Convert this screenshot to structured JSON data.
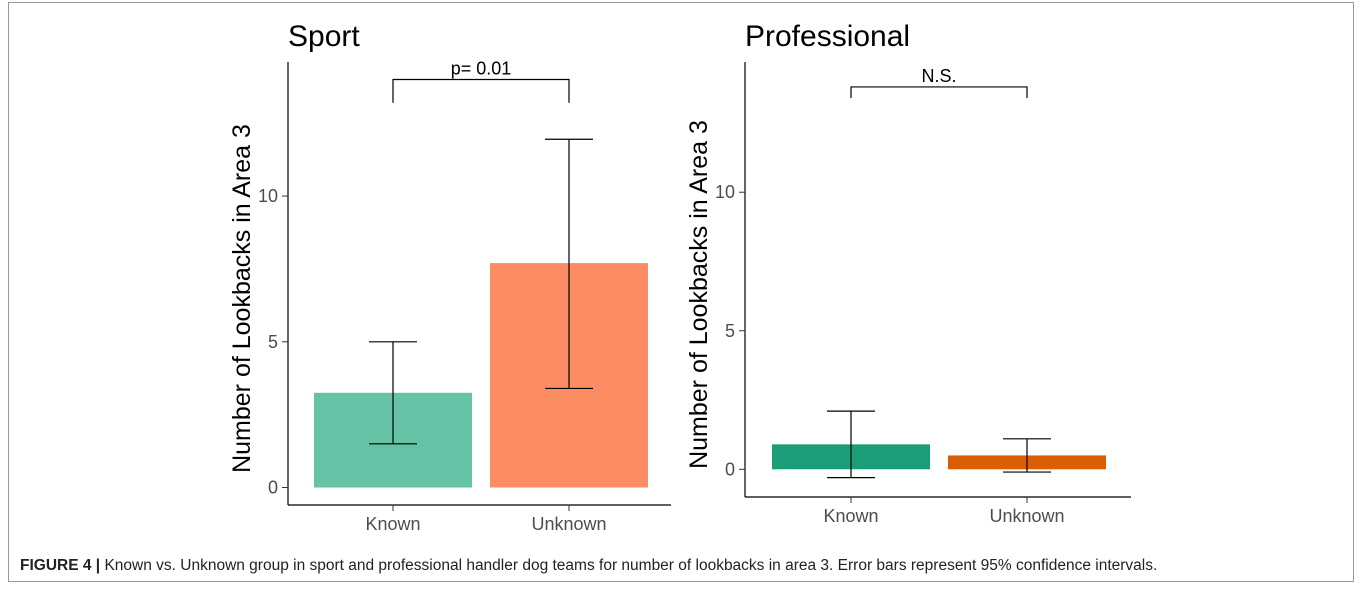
{
  "chart_data": [
    {
      "type": "bar",
      "title": "Sport",
      "ylabel": "Number of Lookbacks in Area 3",
      "xlabel": "",
      "categories": [
        "Known",
        "Unknown"
      ],
      "values": [
        3.25,
        7.7
      ],
      "ci_lower": [
        1.5,
        3.4
      ],
      "ci_upper": [
        5.0,
        11.95
      ],
      "colors": [
        "#66c2a5",
        "#fc8d62"
      ],
      "yticks": [
        0,
        5,
        10
      ],
      "ylim": [
        -0.6,
        14.6
      ],
      "annotation": "p= 0.01",
      "bracket_y": 14.0,
      "bracket_drop": 0.8,
      "grid": false,
      "legend": "none"
    },
    {
      "type": "bar",
      "title": "Professional",
      "ylabel": "Number of Lookbacks in Area 3",
      "xlabel": "",
      "categories": [
        "Known",
        "Unknown"
      ],
      "values": [
        0.9,
        0.5
      ],
      "ci_lower": [
        -0.3,
        -0.1
      ],
      "ci_upper": [
        2.1,
        1.1
      ],
      "colors": [
        "#1b9e77",
        "#d95f02"
      ],
      "yticks": [
        0,
        5,
        10
      ],
      "ylim": [
        -1.0,
        14.7
      ],
      "annotation": "N.S.",
      "bracket_y": 13.8,
      "bracket_drop": 0.4,
      "grid": false,
      "legend": "none"
    }
  ],
  "caption": {
    "label": "FIGURE 4 |",
    "text": " Known vs. Unknown group in sport and professional handler dog teams for number of lookbacks in area 3. Error bars represent 95% confidence intervals."
  }
}
